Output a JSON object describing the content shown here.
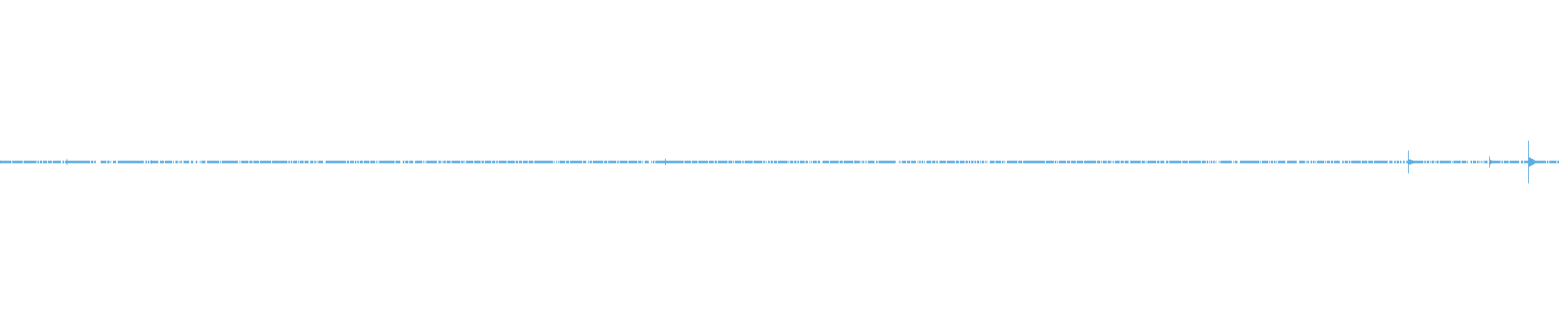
{
  "chart_data": {
    "type": "waveform",
    "color": "#5dade2",
    "background": "#ffffff",
    "amplitude_range": [
      -1,
      1
    ],
    "time_range": [
      0,
      1
    ],
    "bursts": [
      {
        "t": 0.0,
        "amp": 0.03
      },
      {
        "t": 0.043,
        "amp": 0.04
      },
      {
        "t": 0.097,
        "amp": 0.025
      },
      {
        "t": 0.176,
        "amp": 0.02
      },
      {
        "t": 0.212,
        "amp": 0.02
      },
      {
        "t": 0.29,
        "amp": 0.015
      },
      {
        "t": 0.372,
        "amp": 0.02
      },
      {
        "t": 0.427,
        "amp": 0.045
      },
      {
        "t": 0.549,
        "amp": 0.018
      },
      {
        "t": 0.595,
        "amp": 0.015
      },
      {
        "t": 0.624,
        "amp": 0.015
      },
      {
        "t": 0.674,
        "amp": 0.015
      },
      {
        "t": 0.726,
        "amp": 0.02
      },
      {
        "t": 0.768,
        "amp": 0.015
      },
      {
        "t": 0.828,
        "amp": 0.015
      },
      {
        "t": 0.904,
        "amp": 0.15
      },
      {
        "t": 0.956,
        "amp": 0.1
      },
      {
        "t": 0.981,
        "amp": 0.27
      }
    ]
  }
}
